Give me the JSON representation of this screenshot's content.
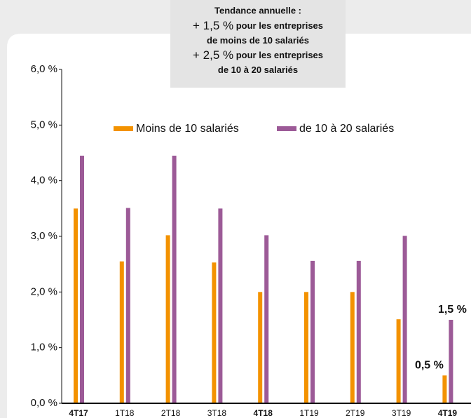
{
  "chart_data": {
    "type": "bar",
    "categories": [
      "4T17",
      "1T18",
      "2T18",
      "3T18",
      "4T18",
      "1T19",
      "2T19",
      "3T19",
      "4T19"
    ],
    "bold_categories": [
      "4T17",
      "4T18",
      "4T19"
    ],
    "series": [
      {
        "name": "Moins de 10 salariés",
        "color": "#f39200",
        "values": [
          3.5,
          2.55,
          3.02,
          2.53,
          2.0,
          2.0,
          2.0,
          1.51,
          0.5
        ],
        "value_labels": [
          null,
          null,
          null,
          null,
          null,
          null,
          null,
          null,
          "0,5 %"
        ]
      },
      {
        "name": "de 10 à 20 salariés",
        "color": "#9c5a97",
        "values": [
          4.45,
          3.51,
          4.45,
          3.5,
          3.02,
          2.56,
          2.56,
          3.01,
          1.5
        ],
        "value_labels": [
          null,
          null,
          null,
          null,
          null,
          null,
          null,
          null,
          "1,5 %"
        ]
      }
    ],
    "ylim": [
      0,
      6
    ],
    "yticks": [
      {
        "value": 0,
        "label": "0,0 %"
      },
      {
        "value": 1,
        "label": "1,0 %"
      },
      {
        "value": 2,
        "label": "2,0 %"
      },
      {
        "value": 3,
        "label": "3,0 %"
      },
      {
        "value": 4,
        "label": "4,0 %"
      },
      {
        "value": 5,
        "label": "5,0 %"
      },
      {
        "value": 6,
        "label": "6,0 %"
      }
    ],
    "grid": false,
    "annotation": {
      "title": "Tendance annuelle :",
      "lines": [
        {
          "emphasis": "+ 1,5 %",
          "text": "pour les entreprises"
        },
        {
          "text": "de moins de 10 salariés"
        },
        {
          "emphasis": "+ 2,5 %",
          "text": "pour les entreprises"
        },
        {
          "text": "de 10 à 20 salariés"
        }
      ]
    }
  }
}
